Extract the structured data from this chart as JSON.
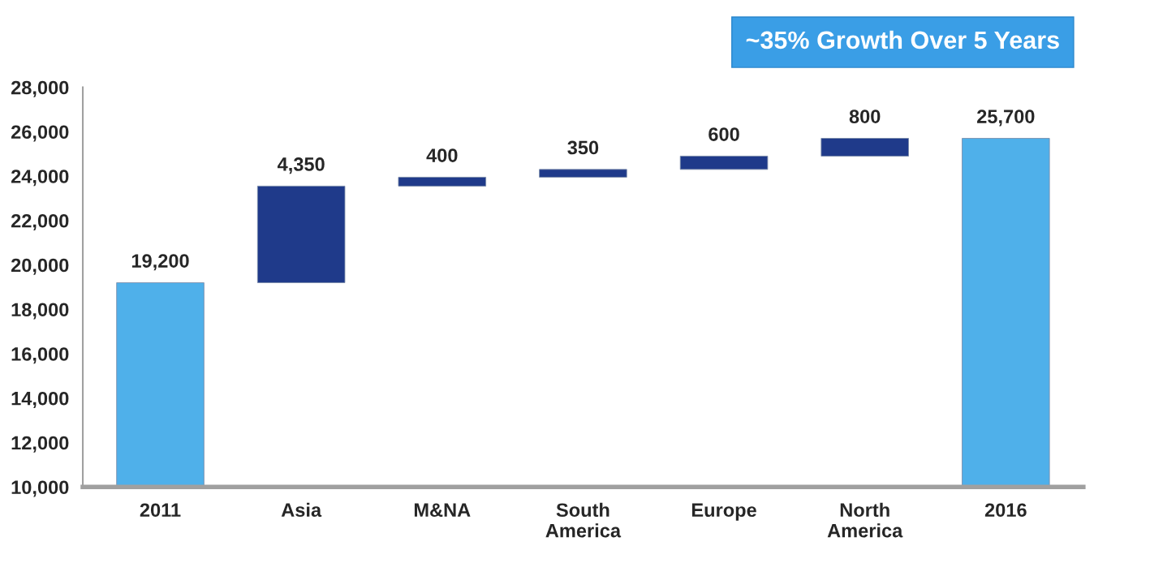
{
  "chart_data": {
    "type": "bar",
    "categories": [
      "2011",
      "Asia",
      "M&NA",
      "South\nAmerica",
      "Europe",
      "North\nAmerica",
      "2016"
    ],
    "values": [
      19200,
      4350,
      400,
      350,
      600,
      800,
      25700
    ],
    "base": [
      null,
      19200,
      23550,
      23950,
      24300,
      24900,
      null
    ],
    "colors": [
      "#4fb0ea",
      "#1f3a8a",
      "#1f3a8a",
      "#1f3a8a",
      "#1f3a8a",
      "#1f3a8a",
      "#4fb0ea"
    ],
    "value_labels": [
      "19,200",
      "4,350",
      "400",
      "350",
      "600",
      "800",
      "25,700"
    ],
    "ylim": [
      10000,
      28000
    ],
    "yticks": [
      {
        "value": 10000,
        "label": "10,000"
      },
      {
        "value": 12000,
        "label": "12,000"
      },
      {
        "value": 14000,
        "label": "14,000"
      },
      {
        "value": 16000,
        "label": "16,000"
      },
      {
        "value": 18000,
        "label": "18,000"
      },
      {
        "value": 20000,
        "label": "20,000"
      },
      {
        "value": 22000,
        "label": "22,000"
      },
      {
        "value": 24000,
        "label": "24,000"
      },
      {
        "value": 26000,
        "label": "26,000"
      },
      {
        "value": 28000,
        "label": "28,000"
      }
    ],
    "grid": false,
    "legend": false,
    "annotations": [
      "~35% Growth Over 5 Years"
    ]
  }
}
